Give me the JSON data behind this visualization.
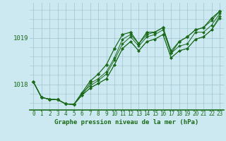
{
  "title": "Graphe pression niveau de la mer (hPa)",
  "bg_color": "#cce8f0",
  "line_color": "#1a6b1a",
  "grid_color": "#a0c4d0",
  "xlim": [
    -0.5,
    23.5
  ],
  "ylim": [
    1017.45,
    1019.75
  ],
  "yticks": [
    1018,
    1019
  ],
  "xticks": [
    0,
    1,
    2,
    3,
    4,
    5,
    6,
    7,
    8,
    9,
    10,
    11,
    12,
    13,
    14,
    15,
    16,
    17,
    18,
    19,
    20,
    21,
    22,
    23
  ],
  "series": [
    [
      1018.05,
      1017.72,
      1017.68,
      1017.67,
      1017.58,
      1017.57,
      1017.82,
      1017.97,
      1018.08,
      1018.22,
      1018.52,
      1018.87,
      1019.02,
      1018.82,
      1019.02,
      1019.07,
      1019.17,
      1018.67,
      1018.82,
      1018.87,
      1019.12,
      1019.12,
      1019.27,
      1019.52
    ],
    [
      1018.05,
      1017.72,
      1017.68,
      1017.67,
      1017.58,
      1017.57,
      1017.77,
      1017.92,
      1018.02,
      1018.12,
      1018.42,
      1018.77,
      1018.92,
      1018.72,
      1018.92,
      1018.97,
      1019.07,
      1018.57,
      1018.72,
      1018.77,
      1018.97,
      1019.02,
      1019.17,
      1019.42
    ],
    [
      1018.05,
      1017.72,
      1017.68,
      1017.67,
      1017.58,
      1017.57,
      1017.77,
      1017.92,
      1018.02,
      1018.12,
      1018.42,
      1018.77,
      1018.92,
      1018.72,
      1018.92,
      1018.97,
      1019.07,
      1018.57,
      1018.72,
      1018.77,
      1018.97,
      1019.02,
      1019.17,
      1019.47
    ],
    [
      1018.05,
      1017.72,
      1017.68,
      1017.67,
      1017.58,
      1017.57,
      1017.77,
      1018.02,
      1018.12,
      1018.27,
      1018.57,
      1018.97,
      1019.07,
      1018.87,
      1019.07,
      1019.12,
      1019.22,
      1018.72,
      1018.92,
      1019.02,
      1019.17,
      1019.22,
      1019.37,
      1019.57
    ]
  ],
  "main_series": [
    1018.05,
    1017.72,
    1017.68,
    1017.67,
    1017.58,
    1017.57,
    1017.82,
    1018.07,
    1018.22,
    1018.42,
    1018.77,
    1019.07,
    1019.12,
    1018.87,
    1019.12,
    1019.12,
    1019.22,
    1018.67,
    1018.92,
    1019.02,
    1019.17,
    1019.22,
    1019.42,
    1019.57
  ],
  "marker": "D",
  "markersize": 2.5,
  "title_fontsize": 6.5,
  "tick_fontsize": 5.5,
  "ytick_fontsize": 6.5
}
